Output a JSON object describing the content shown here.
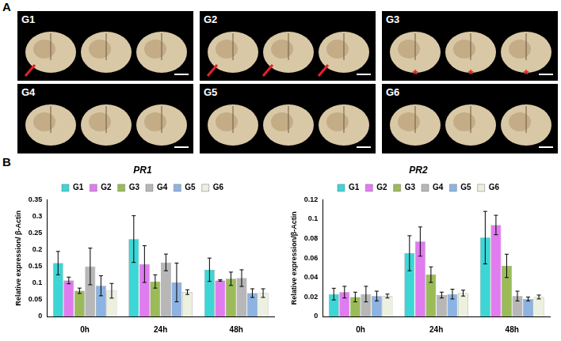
{
  "panel_a": {
    "panel_label": "A",
    "tiles": [
      {
        "label": "G1",
        "arrows": 1
      },
      {
        "label": "G2",
        "arrows": 3
      },
      {
        "label": "G3",
        "asterisks": [
          "*",
          "*",
          "*"
        ]
      },
      {
        "label": "G4"
      },
      {
        "label": "G5"
      },
      {
        "label": "G6"
      }
    ]
  },
  "chart_data": [
    {
      "type": "bar",
      "panel_label": "B",
      "title": "PR1",
      "y_label": "Relative expression/ β-Actin",
      "categories": [
        "0h",
        "24h",
        "48h"
      ],
      "series": [
        {
          "name": "G1",
          "color": "#3dd6d6",
          "values": [
            0.16,
            0.232,
            0.14
          ],
          "errors": [
            0.035,
            0.07,
            0.035
          ]
        },
        {
          "name": "G2",
          "color": "#e07cef",
          "values": [
            0.108,
            0.157,
            0.108
          ],
          "errors": [
            0.01,
            0.055,
            0.002
          ]
        },
        {
          "name": "G3",
          "color": "#9bbb59",
          "values": [
            0.077,
            0.105,
            0.113
          ],
          "errors": [
            0.008,
            0.02,
            0.02
          ]
        },
        {
          "name": "G4",
          "color": "#b7b7b7",
          "values": [
            0.15,
            0.162,
            0.115
          ],
          "errors": [
            0.055,
            0.025,
            0.025
          ]
        },
        {
          "name": "G5",
          "color": "#8db3e2",
          "values": [
            0.092,
            0.102,
            0.07
          ],
          "errors": [
            0.03,
            0.058,
            0.013
          ]
        },
        {
          "name": "G6",
          "color": "#ebf1de",
          "values": [
            0.077,
            0.073,
            0.07
          ],
          "errors": [
            0.022,
            0.007,
            0.013
          ]
        }
      ],
      "ylim": [
        0,
        0.35
      ],
      "yticks": [
        0,
        0.05,
        0.1,
        0.15,
        0.2,
        0.25,
        0.3,
        0.35
      ],
      "grid": false,
      "legend": "top"
    },
    {
      "type": "bar",
      "title": "PR2",
      "y_label": "Relative expression/β-Actin",
      "categories": [
        "0h",
        "24h",
        "48h"
      ],
      "series": [
        {
          "name": "G1",
          "color": "#3dd6d6",
          "values": [
            0.023,
            0.065,
            0.081
          ],
          "errors": [
            0.006,
            0.018,
            0.027
          ]
        },
        {
          "name": "G2",
          "color": "#e07cef",
          "values": [
            0.025,
            0.077,
            0.094
          ],
          "errors": [
            0.006,
            0.015,
            0.01
          ]
        },
        {
          "name": "G3",
          "color": "#9bbb59",
          "values": [
            0.02,
            0.043,
            0.052
          ],
          "errors": [
            0.005,
            0.008,
            0.012
          ]
        },
        {
          "name": "G4",
          "color": "#b7b7b7",
          "values": [
            0.023,
            0.022,
            0.021
          ],
          "errors": [
            0.008,
            0.003,
            0.005
          ]
        },
        {
          "name": "G5",
          "color": "#8db3e2",
          "values": [
            0.021,
            0.023,
            0.018
          ],
          "errors": [
            0.005,
            0.005,
            0.002
          ]
        },
        {
          "name": "G6",
          "color": "#ebf1de",
          "values": [
            0.021,
            0.024,
            0.02
          ],
          "errors": [
            0.002,
            0.003,
            0.002
          ]
        }
      ],
      "ylim": [
        0,
        0.12
      ],
      "yticks": [
        0,
        0.02,
        0.04,
        0.06,
        0.08,
        0.1,
        0.12
      ],
      "grid": false,
      "legend": "top"
    }
  ]
}
